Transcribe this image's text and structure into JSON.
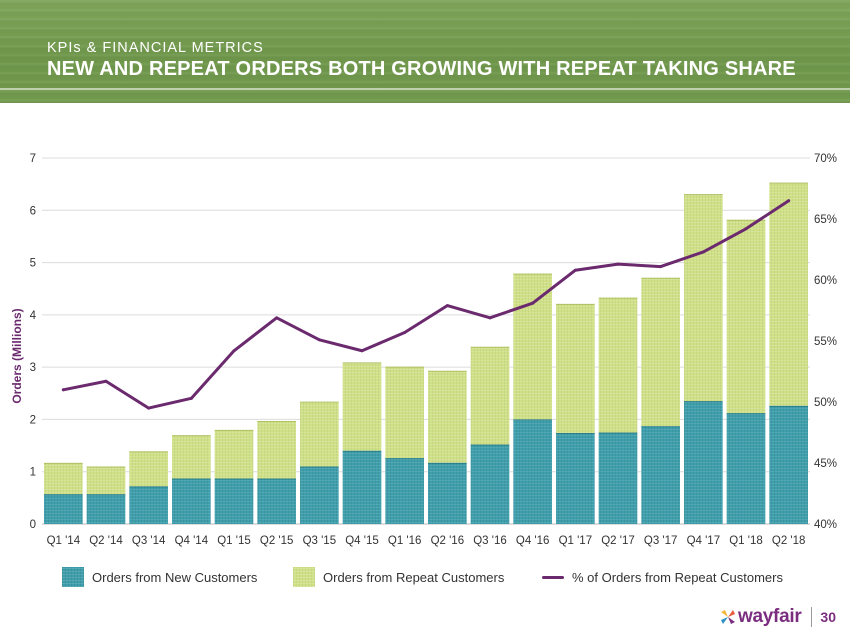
{
  "header": {
    "kicker": "KPIs & FINANCIAL METRICS",
    "title": "NEW AND REPEAT ORDERS BOTH GROWING WITH REPEAT TAKING SHARE"
  },
  "colors": {
    "new_customers": "#3e9eab",
    "repeat_customers": "#cfe086",
    "repeat_share_line": "#6b2a6e",
    "header_green": "#729a4e",
    "brand_purple": "#7b2e7f"
  },
  "chart_data": {
    "type": "bar",
    "stacked": true,
    "title": "",
    "ylabel": "Orders (Millions)",
    "ylim": [
      0,
      7
    ],
    "yticks": [
      "0",
      "1",
      "2",
      "3",
      "4",
      "5",
      "6",
      "7"
    ],
    "y2lim": [
      40,
      70
    ],
    "y2ticks": [
      "40%",
      "45%",
      "50%",
      "55%",
      "60%",
      "65%",
      "70%"
    ],
    "grid": true,
    "legend_position": "bottom",
    "categories": [
      "Q1 '14",
      "Q2 '14",
      "Q3 '14",
      "Q4 '14",
      "Q1 '15",
      "Q2 '15",
      "Q3 '15",
      "Q4 '15",
      "Q1 '16",
      "Q2 '16",
      "Q3 '16",
      "Q4 '16",
      "Q1 '17",
      "Q2 '17",
      "Q3 '17",
      "Q4 '17",
      "Q1 '18",
      "Q2 '18"
    ],
    "series": [
      {
        "name": "Orders from New Customers",
        "type": "bar",
        "axis": "left",
        "values": [
          0.57,
          0.57,
          0.72,
          0.87,
          0.87,
          0.87,
          1.1,
          1.4,
          1.26,
          1.17,
          1.52,
          2.0,
          1.74,
          1.75,
          1.87,
          2.35,
          2.12,
          2.26
        ]
      },
      {
        "name": "Orders from Repeat Customers",
        "type": "bar",
        "axis": "left",
        "values": [
          0.6,
          0.53,
          0.67,
          0.83,
          0.93,
          1.1,
          1.24,
          1.69,
          1.75,
          1.76,
          1.87,
          2.79,
          2.47,
          2.58,
          2.84,
          3.96,
          3.7,
          4.27
        ]
      },
      {
        "name": "% of Orders from Repeat Customers",
        "type": "line",
        "axis": "right",
        "values": [
          51.0,
          51.7,
          49.5,
          50.3,
          54.2,
          56.9,
          55.1,
          54.2,
          55.7,
          57.9,
          56.9,
          58.1,
          60.8,
          61.3,
          61.1,
          62.3,
          64.2,
          66.5
        ]
      }
    ]
  },
  "footer": {
    "logo": "wayfair",
    "page_number": "30"
  }
}
